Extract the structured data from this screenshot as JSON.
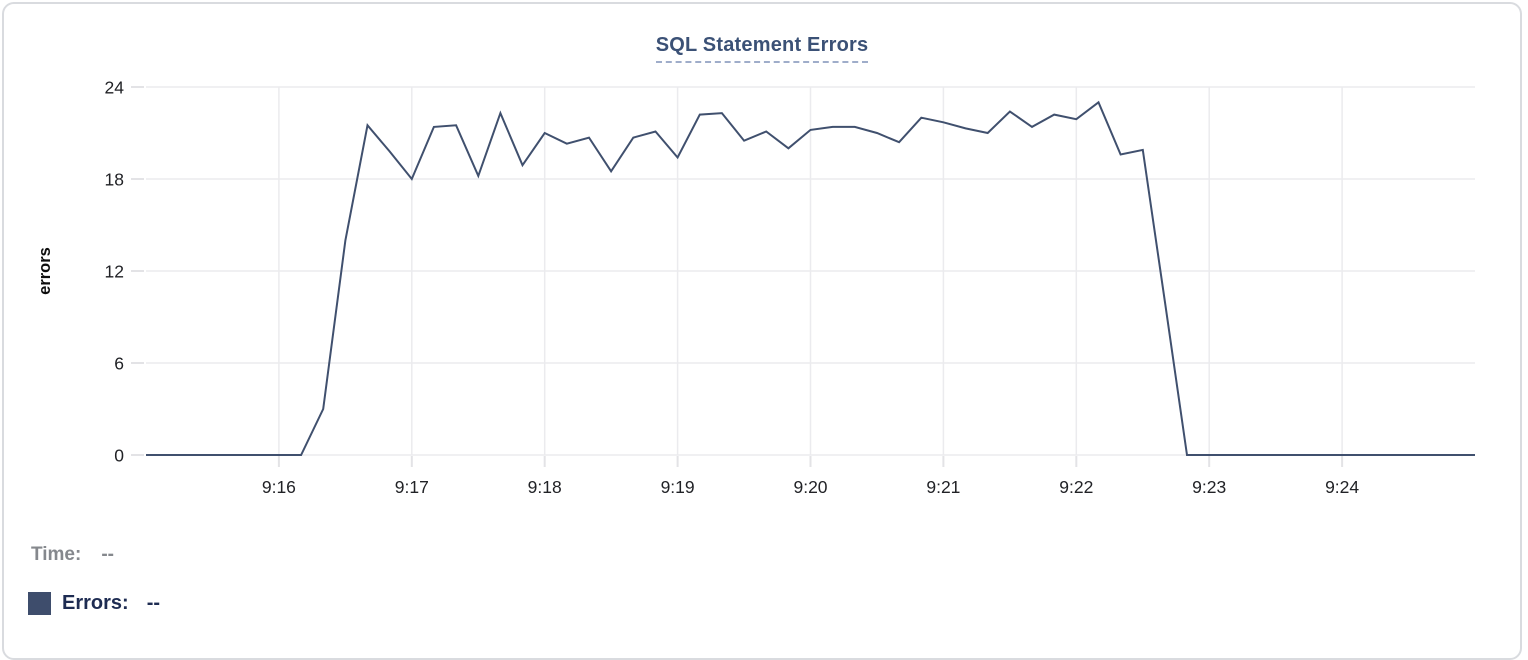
{
  "header": {
    "title": "SQL Statement Errors"
  },
  "legend": {
    "time_label": "Time:",
    "time_value": "--",
    "errors_label": "Errors:",
    "errors_value": "--",
    "swatch_color": "#3e4d6c"
  },
  "colors": {
    "line": "#40506e",
    "grid": "#ebebee",
    "tick": "#e3e3e6",
    "axis_text": "#212226",
    "title": "#3b5176",
    "title_underline": "#9fadca",
    "card_border": "#d9dbdf"
  },
  "chart_data": {
    "type": "line",
    "title": "SQL Statement Errors",
    "xlabel": "",
    "ylabel": "errors",
    "ylim": [
      0,
      24
    ],
    "y_ticks": [
      24,
      18,
      12,
      6,
      0
    ],
    "x_ticks": [
      "9:16",
      "9:17",
      "9:18",
      "9:19",
      "9:20",
      "9:21",
      "9:22",
      "9:23",
      "9:24"
    ],
    "x_range": [
      "9:15:00",
      "9:25:00"
    ],
    "interval_seconds": 10,
    "grid": true,
    "legend_position": "bottom-left",
    "series_name": "Errors",
    "x": [
      "9:15:00",
      "9:15:10",
      "9:15:20",
      "9:15:30",
      "9:15:40",
      "9:15:50",
      "9:16:00",
      "9:16:10",
      "9:16:20",
      "9:16:30",
      "9:16:40",
      "9:16:50",
      "9:17:00",
      "9:17:10",
      "9:17:20",
      "9:17:30",
      "9:17:40",
      "9:17:50",
      "9:18:00",
      "9:18:10",
      "9:18:20",
      "9:18:30",
      "9:18:40",
      "9:18:50",
      "9:19:00",
      "9:19:10",
      "9:19:20",
      "9:19:30",
      "9:19:40",
      "9:19:50",
      "9:20:00",
      "9:20:10",
      "9:20:20",
      "9:20:30",
      "9:20:40",
      "9:20:50",
      "9:21:00",
      "9:21:10",
      "9:21:20",
      "9:21:30",
      "9:21:40",
      "9:21:50",
      "9:22:00",
      "9:22:10",
      "9:22:20",
      "9:22:30",
      "9:22:40",
      "9:22:50",
      "9:23:00",
      "9:23:10",
      "9:23:20",
      "9:23:30",
      "9:23:40",
      "9:23:50",
      "9:24:00",
      "9:24:10",
      "9:24:20",
      "9:24:30",
      "9:24:40",
      "9:24:50",
      "9:25:00"
    ],
    "values": [
      0,
      0,
      0,
      0,
      0,
      0,
      0,
      0,
      3,
      14,
      21.5,
      19.8,
      18,
      21.4,
      21.5,
      18.2,
      22.3,
      18.9,
      21,
      20.3,
      20.7,
      18.5,
      20.7,
      21.1,
      19.4,
      22.2,
      22.3,
      20.5,
      21.1,
      20,
      21.2,
      21.4,
      21.4,
      21,
      20.4,
      22,
      21.7,
      21.3,
      21,
      22.4,
      21.4,
      22.2,
      21.9,
      23,
      19.6,
      19.9,
      10,
      0,
      0,
      0,
      0,
      0,
      0,
      0,
      0,
      0,
      0,
      0,
      0,
      0,
      0
    ]
  }
}
